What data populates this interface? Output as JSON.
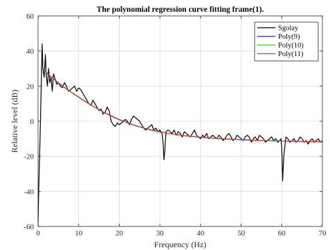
{
  "chart_data": {
    "type": "line",
    "title": "The polynomial regression curve fitting frame(1).",
    "xlabel": "Frequency (Hz)",
    "ylabel": "Relative level (dB)",
    "xlim": [
      0,
      70
    ],
    "ylim": [
      -60,
      60
    ],
    "xticks": [
      0,
      10,
      20,
      30,
      40,
      50,
      60,
      70
    ],
    "yticks": [
      -60,
      -40,
      -20,
      0,
      20,
      40,
      60
    ],
    "grid": true,
    "legend_position": "top-right",
    "series": [
      {
        "name": "Sgolay",
        "color": "#000000",
        "x": [
          0,
          0.2,
          0.5,
          0.8,
          1.0,
          1.2,
          1.5,
          1.8,
          2.0,
          2.3,
          2.6,
          2.9,
          3.2,
          3.5,
          3.8,
          4.2,
          4.6,
          5.0,
          5.5,
          6.0,
          6.5,
          7.0,
          7.5,
          8.0,
          8.5,
          9.0,
          9.5,
          10.0,
          10.5,
          11.0,
          11.5,
          12.0,
          12.5,
          13.0,
          13.5,
          14.0,
          14.5,
          15.0,
          15.5,
          16.0,
          16.5,
          17.0,
          17.5,
          18.0,
          18.5,
          19.0,
          19.5,
          20.0,
          20.5,
          21.0,
          21.5,
          22.0,
          22.5,
          23.0,
          23.5,
          24.0,
          24.5,
          25.0,
          25.5,
          26.0,
          26.5,
          27.0,
          27.5,
          28.0,
          28.5,
          29.0,
          29.5,
          30.0,
          30.5,
          30.8,
          31.0,
          31.2,
          31.5,
          32.0,
          32.5,
          33.0,
          33.5,
          34.0,
          34.5,
          35.0,
          35.5,
          36.0,
          36.5,
          37.0,
          37.5,
          38.0,
          38.5,
          39.0,
          39.5,
          40.0,
          40.5,
          41.0,
          41.5,
          42.0,
          42.5,
          43.0,
          43.5,
          44.0,
          44.5,
          45.0,
          45.5,
          46.0,
          46.5,
          47.0,
          47.5,
          48.0,
          48.5,
          49.0,
          49.5,
          50.0,
          50.5,
          51.0,
          51.5,
          52.0,
          52.5,
          53.0,
          53.5,
          54.0,
          54.5,
          55.0,
          55.5,
          56.0,
          56.5,
          57.0,
          57.5,
          58.0,
          58.5,
          59.0,
          59.5,
          59.8,
          60.0,
          60.2,
          60.5,
          61.0,
          61.5,
          62.0,
          62.5,
          63.0,
          63.5,
          64.0,
          64.5,
          65.0,
          65.5,
          66.0,
          66.5,
          67.0,
          67.5,
          68.0,
          68.5,
          69.0,
          69.5,
          70.0
        ],
        "y": [
          -58,
          -35,
          -10,
          22,
          44,
          30,
          25,
          38,
          27,
          20,
          30,
          22,
          25,
          17,
          27,
          24,
          21,
          22,
          20,
          19,
          22,
          20,
          17,
          18,
          19,
          20,
          17,
          19,
          18,
          16,
          14,
          12,
          10,
          9,
          12,
          10,
          8,
          6,
          7,
          4,
          5,
          8,
          6,
          0,
          -2,
          -3,
          -1,
          -2,
          -1,
          0,
          1,
          0,
          -2,
          1,
          3,
          2,
          1,
          0,
          -2,
          -4,
          -5,
          -4,
          -3,
          -2,
          -5,
          -4,
          -6,
          -5,
          -7,
          -12,
          -22,
          -17,
          -6,
          -5,
          -6,
          -7,
          -5,
          -8,
          -6,
          -7,
          -9,
          -6,
          -7,
          -8,
          -9,
          -7,
          -5,
          -8,
          -9,
          -10,
          -8,
          -9,
          -7,
          -10,
          -9,
          -8,
          -9,
          -10,
          -8,
          -9,
          -11,
          -10,
          -8,
          -7,
          -9,
          -11,
          -10,
          -8,
          -9,
          -10,
          -11,
          -9,
          -8,
          -9,
          -12,
          -10,
          -9,
          -11,
          -8,
          -9,
          -10,
          -12,
          -11,
          -10,
          -9,
          -11,
          -10,
          -12,
          -11,
          -10,
          -15,
          -34,
          -20,
          -9,
          -10,
          -12,
          -11,
          -10,
          -12,
          -11,
          -9,
          -10,
          -12,
          -11,
          -13,
          -11,
          -10,
          -12,
          -11,
          -10,
          -12,
          -11
        ]
      },
      {
        "name": "Poly(9)",
        "color": "#2b2bdb",
        "x": [
          1.0,
          2,
          3,
          4,
          5,
          6,
          7,
          8,
          9,
          10,
          12,
          14,
          16,
          18,
          20,
          22,
          24,
          26,
          28,
          30,
          32,
          34,
          36,
          38,
          40,
          42,
          44,
          46,
          48,
          50,
          52,
          54,
          56,
          58,
          60,
          62,
          64,
          66,
          68,
          70
        ],
        "y": [
          30,
          27.5,
          25.5,
          23.6,
          21.8,
          20.0,
          18.3,
          16.7,
          15.1,
          13.6,
          10.6,
          7.8,
          5.2,
          2.9,
          0.8,
          -1.0,
          -2.6,
          -4.0,
          -5.2,
          -6.2,
          -7.0,
          -7.7,
          -8.3,
          -8.8,
          -9.2,
          -9.6,
          -9.9,
          -10.2,
          -10.4,
          -10.6,
          -10.8,
          -11.0,
          -11.1,
          -11.2,
          -11.3,
          -11.4,
          -11.5,
          -11.6,
          -11.7,
          -11.8
        ]
      },
      {
        "name": "Poly(10)",
        "color": "#22dd22",
        "x": [
          1.0,
          2,
          3,
          4,
          5,
          6,
          7,
          8,
          9,
          10,
          12,
          14,
          16,
          18,
          20,
          22,
          24,
          26,
          28,
          30,
          32,
          34,
          36,
          38,
          40,
          42,
          44,
          46,
          48,
          50,
          52,
          54,
          56,
          58,
          60,
          62,
          64,
          66,
          68,
          70
        ],
        "y": [
          30.5,
          27.7,
          25.6,
          23.7,
          21.9,
          20.1,
          18.4,
          16.8,
          15.2,
          13.7,
          10.7,
          7.9,
          5.3,
          3.0,
          0.9,
          -0.9,
          -2.5,
          -3.9,
          -5.1,
          -6.1,
          -6.9,
          -7.6,
          -8.2,
          -8.7,
          -9.1,
          -9.5,
          -9.8,
          -10.1,
          -10.3,
          -10.5,
          -10.7,
          -10.9,
          -11.0,
          -11.1,
          -11.2,
          -11.3,
          -11.4,
          -11.5,
          -11.6,
          -11.7
        ]
      },
      {
        "name": "Poly(11)",
        "color": "#e03030",
        "x": [
          1.0,
          2,
          3,
          4,
          5,
          6,
          7,
          8,
          9,
          10,
          12,
          14,
          16,
          18,
          20,
          22,
          24,
          26,
          28,
          30,
          32,
          34,
          36,
          38,
          40,
          42,
          44,
          46,
          48,
          50,
          52,
          54,
          56,
          58,
          60,
          62,
          64,
          66,
          68,
          70
        ],
        "y": [
          31,
          28,
          25.8,
          23.8,
          22.0,
          20.2,
          18.5,
          16.9,
          15.3,
          13.8,
          10.8,
          8.0,
          5.4,
          3.1,
          1.0,
          -0.8,
          -2.4,
          -3.8,
          -5.0,
          -6.0,
          -6.9,
          -7.6,
          -8.2,
          -8.7,
          -9.1,
          -9.5,
          -9.8,
          -10.1,
          -10.3,
          -10.5,
          -10.7,
          -10.9,
          -11.0,
          -11.2,
          -11.3,
          -11.4,
          -11.5,
          -11.6,
          -11.7,
          -11.8
        ]
      }
    ]
  }
}
